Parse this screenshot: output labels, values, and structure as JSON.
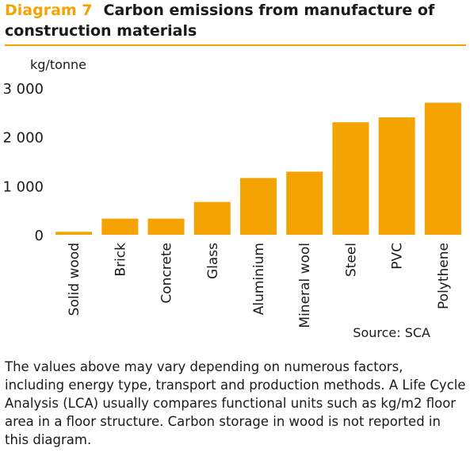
{
  "header": {
    "label": "Diagram 7",
    "title": "Carbon emissions from manufacture of construction materials"
  },
  "colors": {
    "accent": "#f5a300",
    "bar": "#f5a300",
    "text": "#1a1a1a"
  },
  "chart_data": {
    "type": "bar",
    "categories": [
      "Solid wood",
      "Brick",
      "Concrete",
      "Glass",
      "Aluminium",
      "Mineral wool",
      "Steel",
      "PVC",
      "Polythene"
    ],
    "values": [
      60,
      330,
      330,
      670,
      1160,
      1290,
      2300,
      2400,
      2700
    ],
    "ylabel": "kg/tonne",
    "ylim": [
      0,
      3000
    ],
    "yticks": [
      0,
      1000,
      2000,
      3000
    ],
    "ytick_labels": [
      "0",
      "1 000",
      "2 000",
      "3 000"
    ],
    "grid": false,
    "source": "Source: SCA"
  },
  "note": "The values above may vary depending on numerous factors, including energy type, transport and production methods. A Life Cycle Analysis (LCA) usually compares functional units such as kg/m2 floor area in a floor structure. Carbon storage in wood is not reported in this diagram."
}
